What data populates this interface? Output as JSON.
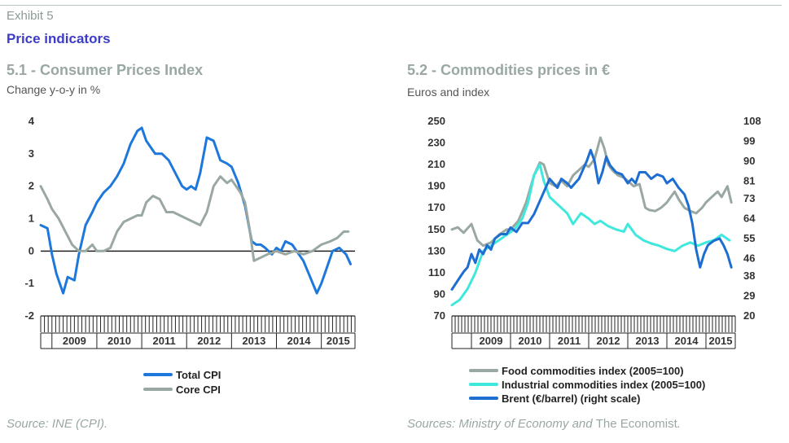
{
  "header": {
    "exhibit": "Exhibit 5",
    "title": "Price indicators"
  },
  "colors": {
    "total_cpi": "#1e78dc",
    "core_cpi": "#9aa8a2",
    "food": "#9aa8a2",
    "industrial": "#3fe8dc",
    "brent": "#1e6ed2",
    "title_blue": "#3c3cc6"
  },
  "panel1": {
    "title": "5.1 - Consumer Prices Index",
    "subtitle": "Change y-o-y in %",
    "source": "Source: INE (CPI)."
  },
  "panel2": {
    "title": "5.2 - Commodities prices in €",
    "subtitle": "Euros and index",
    "source_parts": [
      "Sources: Ministry of Economy and ",
      "The Economist",
      "."
    ]
  },
  "chart_data": [
    {
      "type": "line",
      "title": "5.1 - Consumer Prices Index",
      "ylabel": "Change y-o-y in %",
      "ylim": [
        -2,
        4
      ],
      "y_ticks": [
        -2,
        -1,
        0,
        1,
        2,
        3,
        4
      ],
      "x_years": [
        "2009",
        "2010",
        "2011",
        "2012",
        "2013",
        "2014",
        "2015"
      ],
      "x_range": [
        2008.75,
        2015.75
      ],
      "legend_position": "bottom",
      "series": [
        {
          "name": "Total CPI",
          "color": "#1e78dc",
          "x": [
            2008.75,
            2008.9,
            2009.0,
            2009.1,
            2009.25,
            2009.35,
            2009.5,
            2009.6,
            2009.75,
            2009.9,
            2010.0,
            2010.15,
            2010.3,
            2010.45,
            2010.6,
            2010.75,
            2010.9,
            2011.0,
            2011.1,
            2011.2,
            2011.3,
            2011.45,
            2011.6,
            2011.75,
            2011.9,
            2012.0,
            2012.1,
            2012.2,
            2012.3,
            2012.45,
            2012.6,
            2012.75,
            2012.9,
            2013.0,
            2013.15,
            2013.3,
            2013.45,
            2013.55,
            2013.65,
            2013.75,
            2013.9,
            2014.0,
            2014.1,
            2014.2,
            2014.35,
            2014.45,
            2014.6,
            2014.75,
            2014.9,
            2015.0,
            2015.1,
            2015.25,
            2015.4,
            2015.55,
            2015.65
          ],
          "y": [
            0.8,
            0.7,
            -0.1,
            -0.7,
            -1.3,
            -0.8,
            -0.9,
            -0.1,
            0.8,
            1.2,
            1.5,
            1.8,
            2.0,
            2.3,
            2.7,
            3.3,
            3.7,
            3.8,
            3.4,
            3.2,
            3.0,
            3.0,
            2.8,
            2.4,
            2.0,
            1.9,
            2.0,
            1.9,
            2.4,
            3.5,
            3.4,
            2.8,
            2.7,
            2.6,
            2.1,
            1.4,
            0.3,
            0.2,
            0.2,
            0.1,
            -0.1,
            0.1,
            0.0,
            0.3,
            0.2,
            0.0,
            -0.3,
            -0.8,
            -1.3,
            -1.0,
            -0.6,
            0.0,
            0.1,
            -0.1,
            -0.4
          ]
        },
        {
          "name": "Core CPI",
          "color": "#9aa8a2",
          "x": [
            2008.75,
            2008.9,
            2009.0,
            2009.15,
            2009.3,
            2009.45,
            2009.6,
            2009.75,
            2009.9,
            2010.0,
            2010.15,
            2010.3,
            2010.45,
            2010.6,
            2010.75,
            2010.9,
            2011.0,
            2011.1,
            2011.25,
            2011.4,
            2011.55,
            2011.7,
            2011.85,
            2012.0,
            2012.15,
            2012.3,
            2012.45,
            2012.6,
            2012.75,
            2012.9,
            2013.0,
            2013.1,
            2013.2,
            2013.3,
            2013.4,
            2013.5,
            2013.65,
            2013.8,
            2014.0,
            2014.2,
            2014.4,
            2014.6,
            2014.8,
            2015.0,
            2015.2,
            2015.35,
            2015.5,
            2015.6
          ],
          "y": [
            2.0,
            1.6,
            1.3,
            1.0,
            0.6,
            0.2,
            0.0,
            0.0,
            0.2,
            0.0,
            0.0,
            0.1,
            0.6,
            0.9,
            1.0,
            1.1,
            1.1,
            1.5,
            1.7,
            1.6,
            1.2,
            1.2,
            1.1,
            1.0,
            0.9,
            0.8,
            1.2,
            2.0,
            2.3,
            2.1,
            2.2,
            2.0,
            1.8,
            1.5,
            0.7,
            -0.3,
            -0.2,
            -0.1,
            0.0,
            -0.1,
            0.0,
            -0.1,
            0.0,
            0.2,
            0.3,
            0.4,
            0.6,
            0.6
          ]
        }
      ]
    },
    {
      "type": "line",
      "title": "5.2 - Commodities prices in €",
      "ylabel": "Euros and index",
      "ylim": [
        70,
        250
      ],
      "y_ticks": [
        70,
        90,
        110,
        130,
        150,
        170,
        190,
        210,
        230,
        250
      ],
      "y2lim": [
        20,
        108
      ],
      "y2_ticks": [
        20,
        29,
        38,
        46,
        55,
        64,
        73,
        81,
        90,
        99,
        108
      ],
      "x_years": [
        "2009",
        "2010",
        "2011",
        "2012",
        "2013",
        "2014",
        "2015"
      ],
      "x_range": [
        2008.5,
        2015.75
      ],
      "legend_position": "bottom",
      "series": [
        {
          "name": "Food commodities index (2005=100)",
          "color": "#9aa8a2",
          "axis": "left",
          "x": [
            2008.5,
            2008.65,
            2008.8,
            2009.0,
            2009.15,
            2009.3,
            2009.5,
            2009.7,
            2009.9,
            2010.0,
            2010.2,
            2010.4,
            2010.6,
            2010.75,
            2010.85,
            2011.0,
            2011.15,
            2011.3,
            2011.45,
            2011.6,
            2011.75,
            2011.9,
            2012.0,
            2012.15,
            2012.3,
            2012.4,
            2012.5,
            2012.6,
            2012.75,
            2012.9,
            2013.0,
            2013.15,
            2013.3,
            2013.45,
            2013.55,
            2013.7,
            2013.85,
            2014.0,
            2014.1,
            2014.2,
            2014.3,
            2014.45,
            2014.6,
            2014.75,
            2014.9,
            2015.0,
            2015.15,
            2015.3,
            2015.4,
            2015.55,
            2015.65
          ],
          "y": [
            150,
            152,
            147,
            155,
            140,
            135,
            138,
            145,
            150,
            150,
            158,
            175,
            200,
            212,
            210,
            193,
            190,
            195,
            190,
            200,
            205,
            210,
            208,
            215,
            235,
            225,
            210,
            205,
            200,
            198,
            195,
            190,
            192,
            170,
            168,
            167,
            170,
            175,
            180,
            185,
            178,
            170,
            167,
            165,
            170,
            175,
            180,
            185,
            180,
            190,
            175
          ]
        },
        {
          "name": "Industrial commodities index (2005=100)",
          "color": "#3fe8dc",
          "axis": "left",
          "x": [
            2008.5,
            2008.7,
            2008.9,
            2009.1,
            2009.3,
            2009.5,
            2009.7,
            2009.9,
            2010.1,
            2010.3,
            2010.45,
            2010.6,
            2010.75,
            2010.85,
            2011.0,
            2011.15,
            2011.3,
            2011.45,
            2011.6,
            2011.8,
            2012.0,
            2012.15,
            2012.3,
            2012.5,
            2012.7,
            2012.9,
            2013.0,
            2013.2,
            2013.4,
            2013.6,
            2013.8,
            2014.0,
            2014.2,
            2014.4,
            2014.6,
            2014.8,
            2015.0,
            2015.2,
            2015.4,
            2015.6
          ],
          "y": [
            80,
            85,
            95,
            110,
            130,
            135,
            140,
            145,
            150,
            160,
            175,
            200,
            210,
            195,
            180,
            175,
            170,
            165,
            155,
            165,
            160,
            155,
            158,
            153,
            150,
            148,
            155,
            145,
            140,
            137,
            135,
            132,
            130,
            135,
            138,
            135,
            138,
            140,
            145,
            140
          ]
        },
        {
          "name": "Brent (€/barrel) (right scale)",
          "color": "#1e6ed2",
          "axis": "right",
          "x": [
            2008.5,
            2008.65,
            2008.8,
            2008.9,
            2009.0,
            2009.1,
            2009.2,
            2009.3,
            2009.4,
            2009.5,
            2009.6,
            2009.75,
            2009.9,
            2010.0,
            2010.15,
            2010.3,
            2010.45,
            2010.6,
            2010.75,
            2010.9,
            2011.0,
            2011.1,
            2011.2,
            2011.3,
            2011.45,
            2011.55,
            2011.65,
            2011.75,
            2011.85,
            2011.95,
            2012.05,
            2012.15,
            2012.25,
            2012.35,
            2012.45,
            2012.55,
            2012.7,
            2012.85,
            2013.0,
            2013.1,
            2013.2,
            2013.3,
            2013.45,
            2013.6,
            2013.75,
            2013.9,
            2014.0,
            2014.15,
            2014.3,
            2014.45,
            2014.55,
            2014.65,
            2014.75,
            2014.85,
            2014.95,
            2015.05,
            2015.2,
            2015.35,
            2015.45,
            2015.55,
            2015.65
          ],
          "y": [
            32,
            36,
            40,
            42,
            48,
            44,
            50,
            48,
            52,
            50,
            55,
            57,
            57,
            60,
            58,
            62,
            62,
            66,
            72,
            78,
            82,
            80,
            78,
            82,
            80,
            78,
            80,
            82,
            86,
            90,
            95,
            90,
            80,
            85,
            92,
            88,
            85,
            84,
            80,
            82,
            80,
            85,
            85,
            82,
            84,
            83,
            80,
            82,
            78,
            75,
            70,
            62,
            50,
            42,
            48,
            52,
            54,
            55,
            52,
            48,
            42
          ]
        }
      ]
    }
  ]
}
